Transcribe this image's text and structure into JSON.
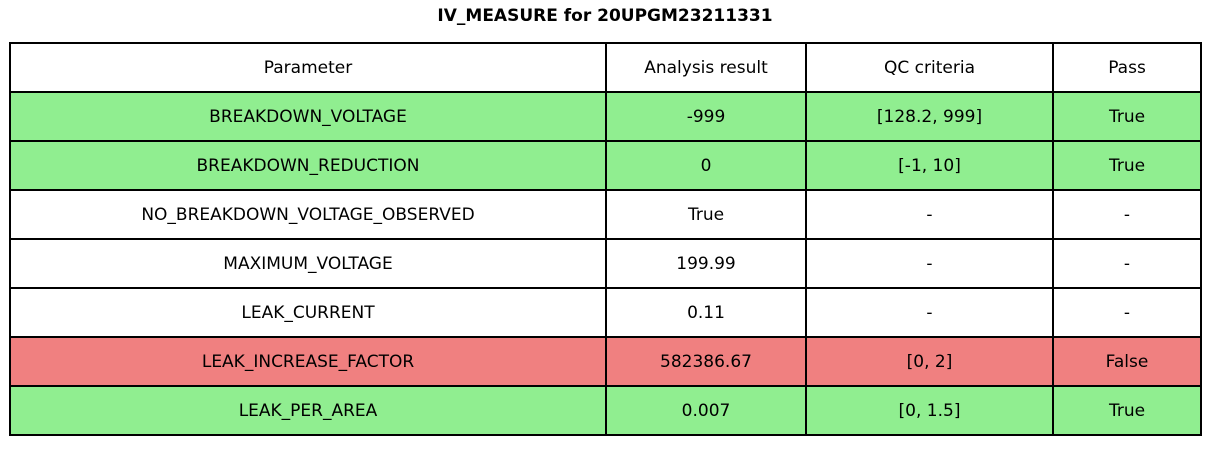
{
  "title": "IV_MEASURE for 20UPGM23211331",
  "chart_data": {
    "type": "table",
    "title": "IV_MEASURE for 20UPGM23211331",
    "columns": [
      "Parameter",
      "Analysis result",
      "QC criteria",
      "Pass"
    ],
    "rows": [
      {
        "cells": [
          "BREAKDOWN_VOLTAGE",
          "-999",
          "[128.2, 999]",
          "True"
        ],
        "status": "pass"
      },
      {
        "cells": [
          "BREAKDOWN_REDUCTION",
          "0",
          "[-1, 10]",
          "True"
        ],
        "status": "pass"
      },
      {
        "cells": [
          "NO_BREAKDOWN_VOLTAGE_OBSERVED",
          "True",
          "-",
          "-"
        ],
        "status": "neutral"
      },
      {
        "cells": [
          "MAXIMUM_VOLTAGE",
          "199.99",
          "-",
          "-"
        ],
        "status": "neutral"
      },
      {
        "cells": [
          "LEAK_CURRENT",
          "0.11",
          "-",
          "-"
        ],
        "status": "neutral"
      },
      {
        "cells": [
          "LEAK_INCREASE_FACTOR",
          "582386.67",
          "[0, 2]",
          "False"
        ],
        "status": "fail"
      },
      {
        "cells": [
          "LEAK_PER_AREA",
          "0.007",
          "[0, 1.5]",
          "True"
        ],
        "status": "pass"
      }
    ],
    "row_colors": {
      "pass": "#90ee90",
      "fail": "#f08080",
      "neutral": "#ffffff"
    },
    "border_color": "#000000",
    "layout": "header row on top, all cells center-aligned, full-row status coloring"
  }
}
